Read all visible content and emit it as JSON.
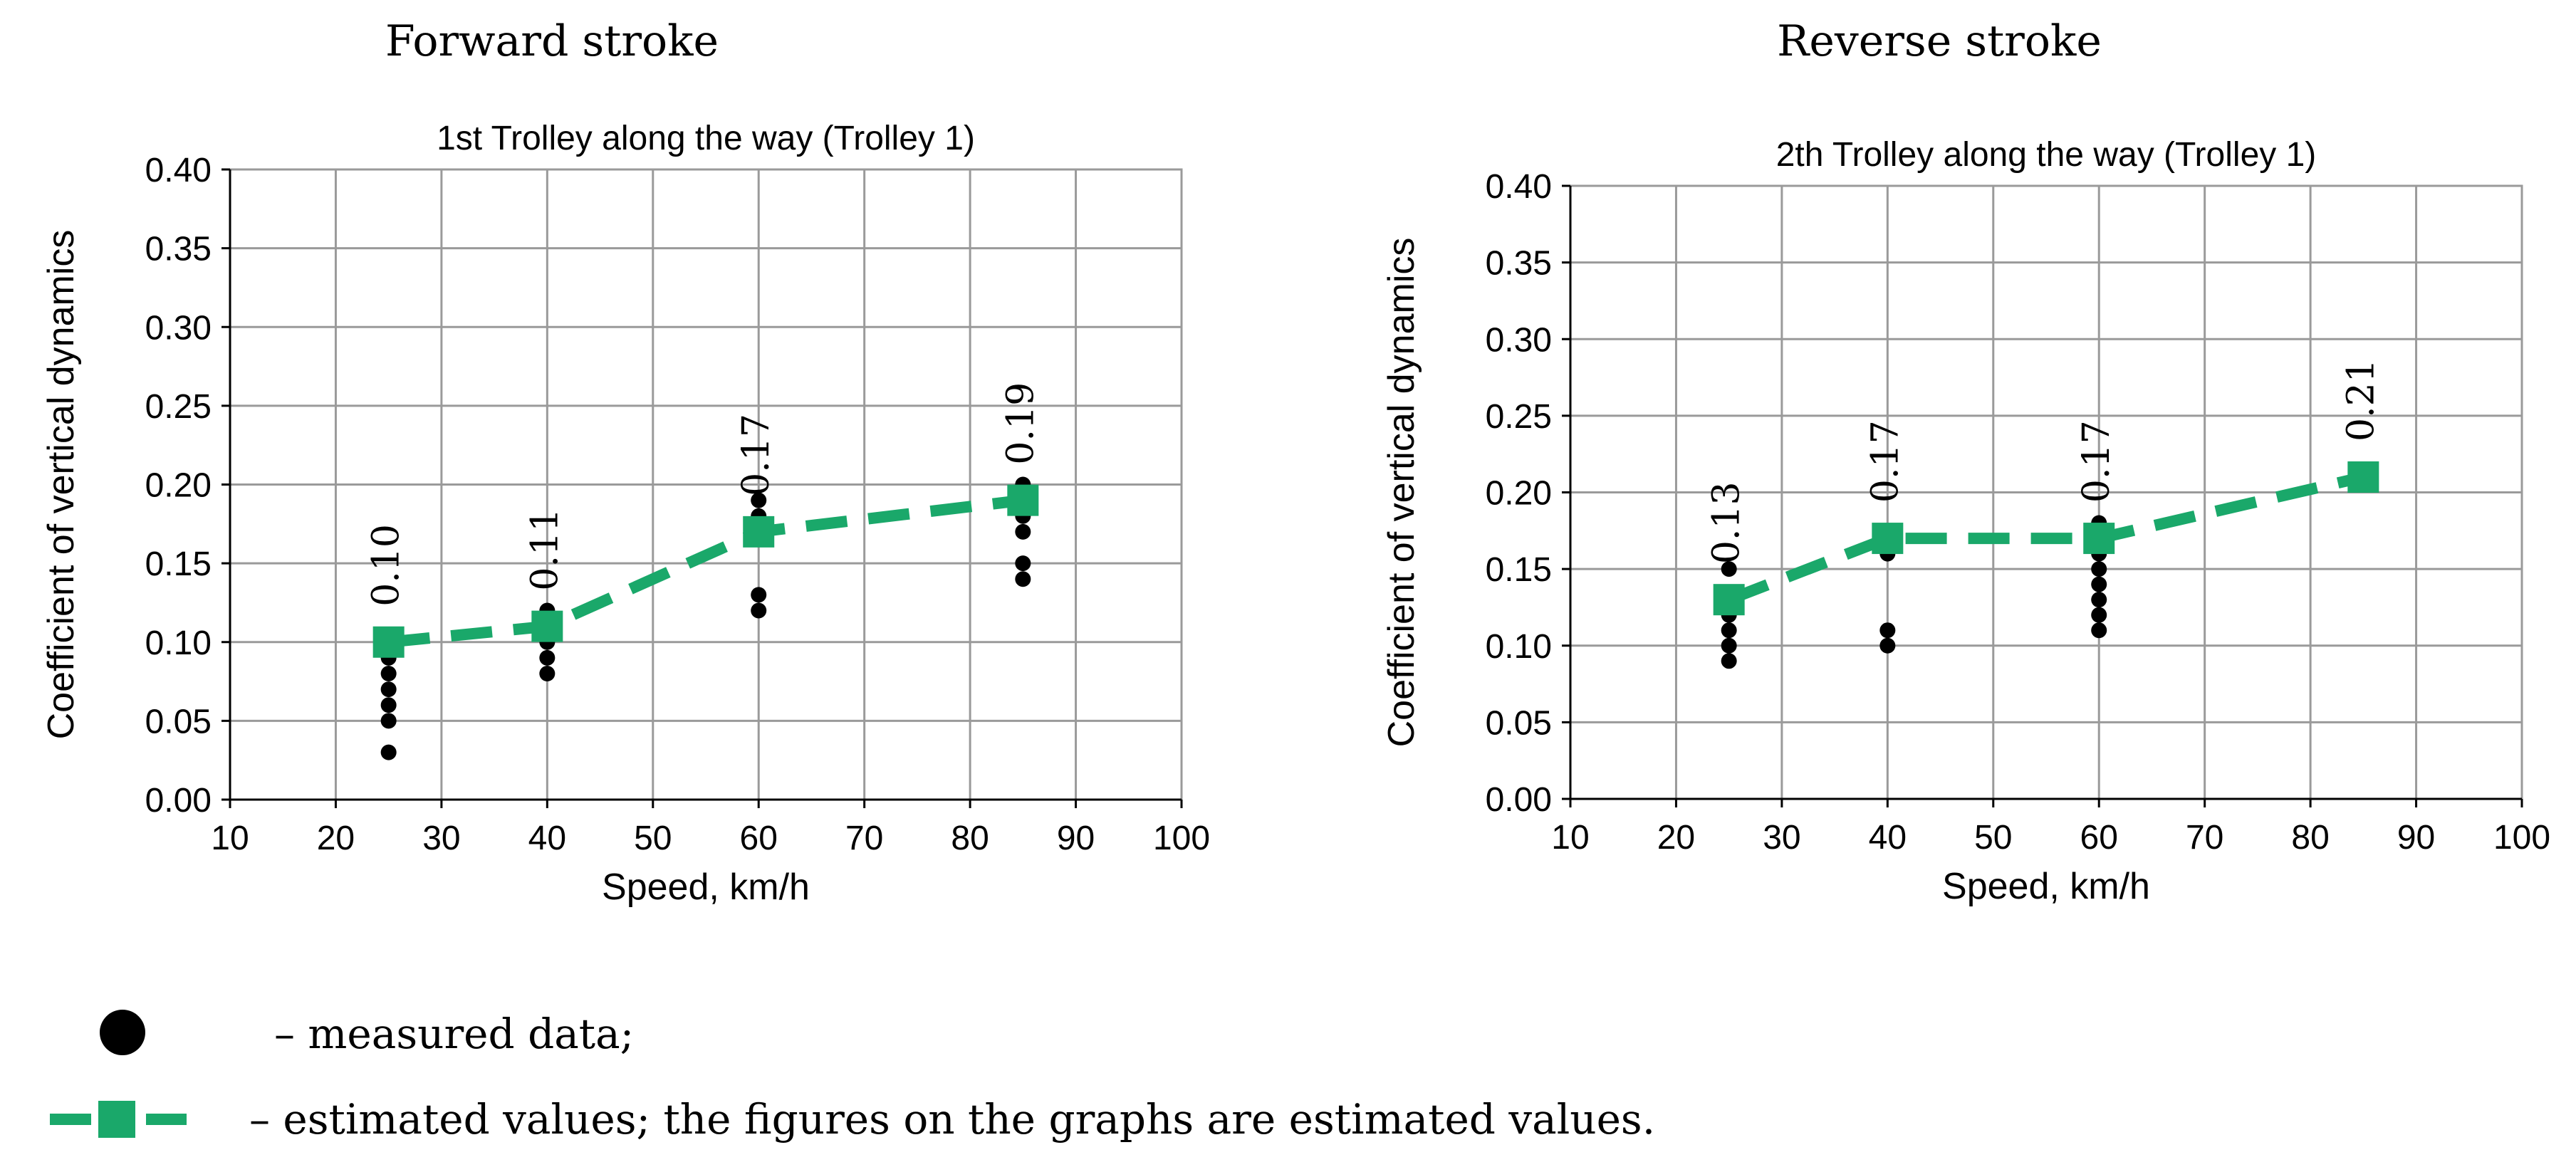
{
  "headers": {
    "left": "Forward stroke",
    "right": "Reverse stroke"
  },
  "legend": {
    "measured_label": "– measured data;",
    "estimated_label": "– estimated values; the figures on the graphs are estimated values."
  },
  "colors": {
    "estimated": "#1aa86a",
    "measured": "#000000",
    "grid": "#9a9a9a",
    "axis": "#000000"
  },
  "chart_data": [
    {
      "type": "scatter",
      "title": "1st Trolley along the way (Trolley 1)",
      "xlabel": "Speed, km/h",
      "ylabel": "Coefficient of vertical dynamics",
      "xlim": [
        10,
        100
      ],
      "ylim": [
        0,
        0.4
      ],
      "xticks": [
        "10",
        "20",
        "30",
        "40",
        "50",
        "60",
        "70",
        "80",
        "90",
        "100"
      ],
      "yticks": [
        "0.00",
        "0.05",
        "0.10",
        "0.15",
        "0.20",
        "0.25",
        "0.30",
        "0.35",
        "0.40"
      ],
      "grid": true,
      "series": [
        {
          "name": "measured data",
          "kind": "points",
          "points": [
            [
              25,
              0.03
            ],
            [
              25,
              0.05
            ],
            [
              25,
              0.06
            ],
            [
              25,
              0.07
            ],
            [
              25,
              0.08
            ],
            [
              25,
              0.09
            ],
            [
              25,
              0.1
            ],
            [
              40,
              0.08
            ],
            [
              40,
              0.09
            ],
            [
              40,
              0.1
            ],
            [
              40,
              0.11
            ],
            [
              40,
              0.12
            ],
            [
              60,
              0.12
            ],
            [
              60,
              0.13
            ],
            [
              60,
              0.17
            ],
            [
              60,
              0.18
            ],
            [
              60,
              0.19
            ],
            [
              85,
              0.14
            ],
            [
              85,
              0.15
            ],
            [
              85,
              0.17
            ],
            [
              85,
              0.18
            ],
            [
              85,
              0.19
            ],
            [
              85,
              0.2
            ]
          ]
        },
        {
          "name": "estimated values",
          "kind": "dashed-line",
          "x": [
            25,
            40,
            60,
            85
          ],
          "y": [
            0.1,
            0.11,
            0.17,
            0.19
          ],
          "labels": [
            "0.10",
            "0.11",
            "0.17",
            "0.19"
          ]
        }
      ]
    },
    {
      "type": "scatter",
      "title": "2th Trolley along the way (Trolley 1)",
      "xlabel": "Speed, km/h",
      "ylabel": "Coefficient of vertical dynamics",
      "xlim": [
        10,
        100
      ],
      "ylim": [
        0,
        0.4
      ],
      "xticks": [
        "10",
        "20",
        "30",
        "40",
        "50",
        "60",
        "70",
        "80",
        "90",
        "100"
      ],
      "yticks": [
        "0.00",
        "0.05",
        "0.10",
        "0.15",
        "0.20",
        "0.25",
        "0.30",
        "0.35",
        "0.40"
      ],
      "grid": true,
      "series": [
        {
          "name": "measured data",
          "kind": "points",
          "points": [
            [
              25,
              0.09
            ],
            [
              25,
              0.1
            ],
            [
              25,
              0.11
            ],
            [
              25,
              0.12
            ],
            [
              25,
              0.13
            ],
            [
              25,
              0.15
            ],
            [
              40,
              0.1
            ],
            [
              40,
              0.11
            ],
            [
              40,
              0.16
            ],
            [
              40,
              0.17
            ],
            [
              60,
              0.11
            ],
            [
              60,
              0.12
            ],
            [
              60,
              0.13
            ],
            [
              60,
              0.14
            ],
            [
              60,
              0.15
            ],
            [
              60,
              0.16
            ],
            [
              60,
              0.17
            ],
            [
              60,
              0.18
            ]
          ]
        },
        {
          "name": "estimated values",
          "kind": "dashed-line",
          "x": [
            25,
            40,
            60,
            85
          ],
          "y": [
            0.13,
            0.17,
            0.17,
            0.21
          ],
          "labels": [
            "0.13",
            "0.17",
            "0.17",
            "0.21"
          ]
        }
      ]
    }
  ]
}
